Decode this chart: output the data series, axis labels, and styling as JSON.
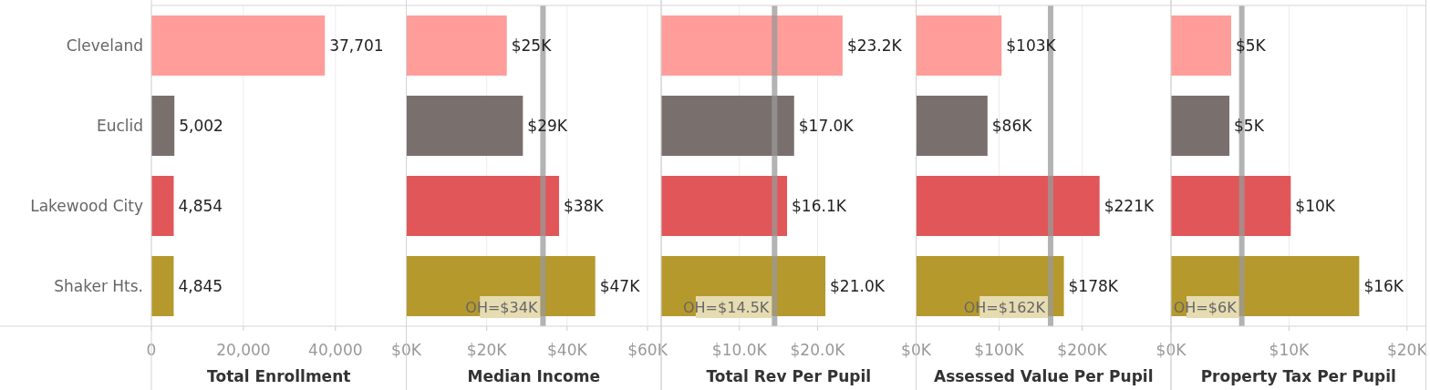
{
  "chart_data": [
    {
      "type": "bar",
      "orientation": "horizontal",
      "categories": [
        "Cleveland",
        "Euclid",
        "Lakewood City",
        "Shaker Hts."
      ],
      "values": [
        37701,
        5002,
        4854,
        4845
      ],
      "value_labels": [
        "37,701",
        "5,002",
        "4,854",
        "4,845"
      ],
      "colors": [
        "#ff9d9a",
        "#79706e",
        "#e15759",
        "#b6992d"
      ],
      "xlim": [
        0,
        55400
      ],
      "xticks": [
        0,
        {
          "value": 20000,
          "label": "20,000"
        },
        {
          "value": 40000,
          "label": "40,000"
        }
      ],
      "xlabel": "Total Enrollment",
      "grid": "x"
    },
    {
      "type": "bar",
      "orientation": "horizontal",
      "categories": [
        null,
        null,
        null,
        null
      ],
      "values": [
        25000,
        29000,
        38000,
        47000
      ],
      "value_labels": [
        "$25K",
        "$29K",
        "$38K",
        "$47K"
      ],
      "colors": [
        "#ff9d9a",
        "#79706e",
        "#e15759",
        "#b6992d"
      ],
      "xlim": [
        0,
        63400
      ],
      "xticks": [
        {
          "value": 0,
          "label": "$0K"
        },
        {
          "value": 20000,
          "label": "$20K"
        },
        {
          "value": 40000,
          "label": "$40K"
        },
        {
          "value": 60000,
          "label": "$60K"
        }
      ],
      "xlabel": "Median Income",
      "grid": "x",
      "tick_labels": "x",
      "ref_lines": [
        {
          "axis": "x",
          "value": 34000,
          "label": "OH=$34K",
          "color": "#999999"
        }
      ]
    },
    {
      "type": "bar",
      "orientation": "horizontal",
      "categories": [
        null,
        null,
        null,
        null
      ],
      "values": [
        23200,
        17000,
        16100,
        21000
      ],
      "value_labels": [
        "$23.2K",
        "$17.0K",
        "$16.1K",
        "$21.0K"
      ],
      "colors": [
        "#ff9d9a",
        "#79706e",
        "#e15759",
        "#b6992d"
      ],
      "xlim": [
        0,
        32600
      ],
      "xticks": [
        {
          "value": 10000,
          "label": "$10.0K"
        },
        {
          "value": 20000,
          "label": "$20.0K"
        }
      ],
      "xlabel": "Total Rev Per Pupil",
      "grid": "x",
      "tick_labels": "x",
      "ref_lines": [
        {
          "axis": "x",
          "value": 14500,
          "label": "OH=$14.5K",
          "color": "#999999"
        }
      ]
    },
    {
      "type": "bar",
      "orientation": "horizontal",
      "categories": [
        null,
        null,
        null,
        null
      ],
      "values": [
        103000,
        86000,
        221000,
        178000
      ],
      "value_labels": [
        "$103K",
        "$86K",
        "$221K",
        "$178K"
      ],
      "colors": [
        "#ff9d9a",
        "#79706e",
        "#e15759",
        "#b6992d"
      ],
      "xlim": [
        0,
        307000
      ],
      "xticks": [
        {
          "value": 0,
          "label": "$0K"
        },
        {
          "value": 100000,
          "label": "$100K"
        },
        {
          "value": 200000,
          "label": "$200K"
        }
      ],
      "xlabel": "Assessed Value Per Pupil",
      "grid": "x",
      "tick_labels": "x",
      "ref_lines": [
        {
          "axis": "x",
          "value": 162000,
          "label": "OH=$162K",
          "color": "#999999"
        }
      ]
    },
    {
      "type": "bar",
      "orientation": "horizontal",
      "categories": [
        null,
        null,
        null,
        null
      ],
      "values": [
        5100,
        4950,
        10150,
        15950
      ],
      "value_labels": [
        "$5K",
        "$5K",
        "$10K",
        "$16K"
      ],
      "colors": [
        "#ff9d9a",
        "#79706e",
        "#e15759",
        "#b6992d"
      ],
      "xlim": [
        0,
        21600
      ],
      "xticks": [
        {
          "value": 0,
          "label": "$0K"
        },
        {
          "value": 10000,
          "label": "$10K"
        },
        {
          "value": 20000,
          "label": "$20K"
        }
      ],
      "xlabel": "Property Tax Per Pupil",
      "grid": "x",
      "tick_labels": "x",
      "ref_lines": [
        {
          "axis": "x",
          "value": 6000,
          "label": "OH=$6K",
          "color": "#999999"
        }
      ]
    }
  ]
}
